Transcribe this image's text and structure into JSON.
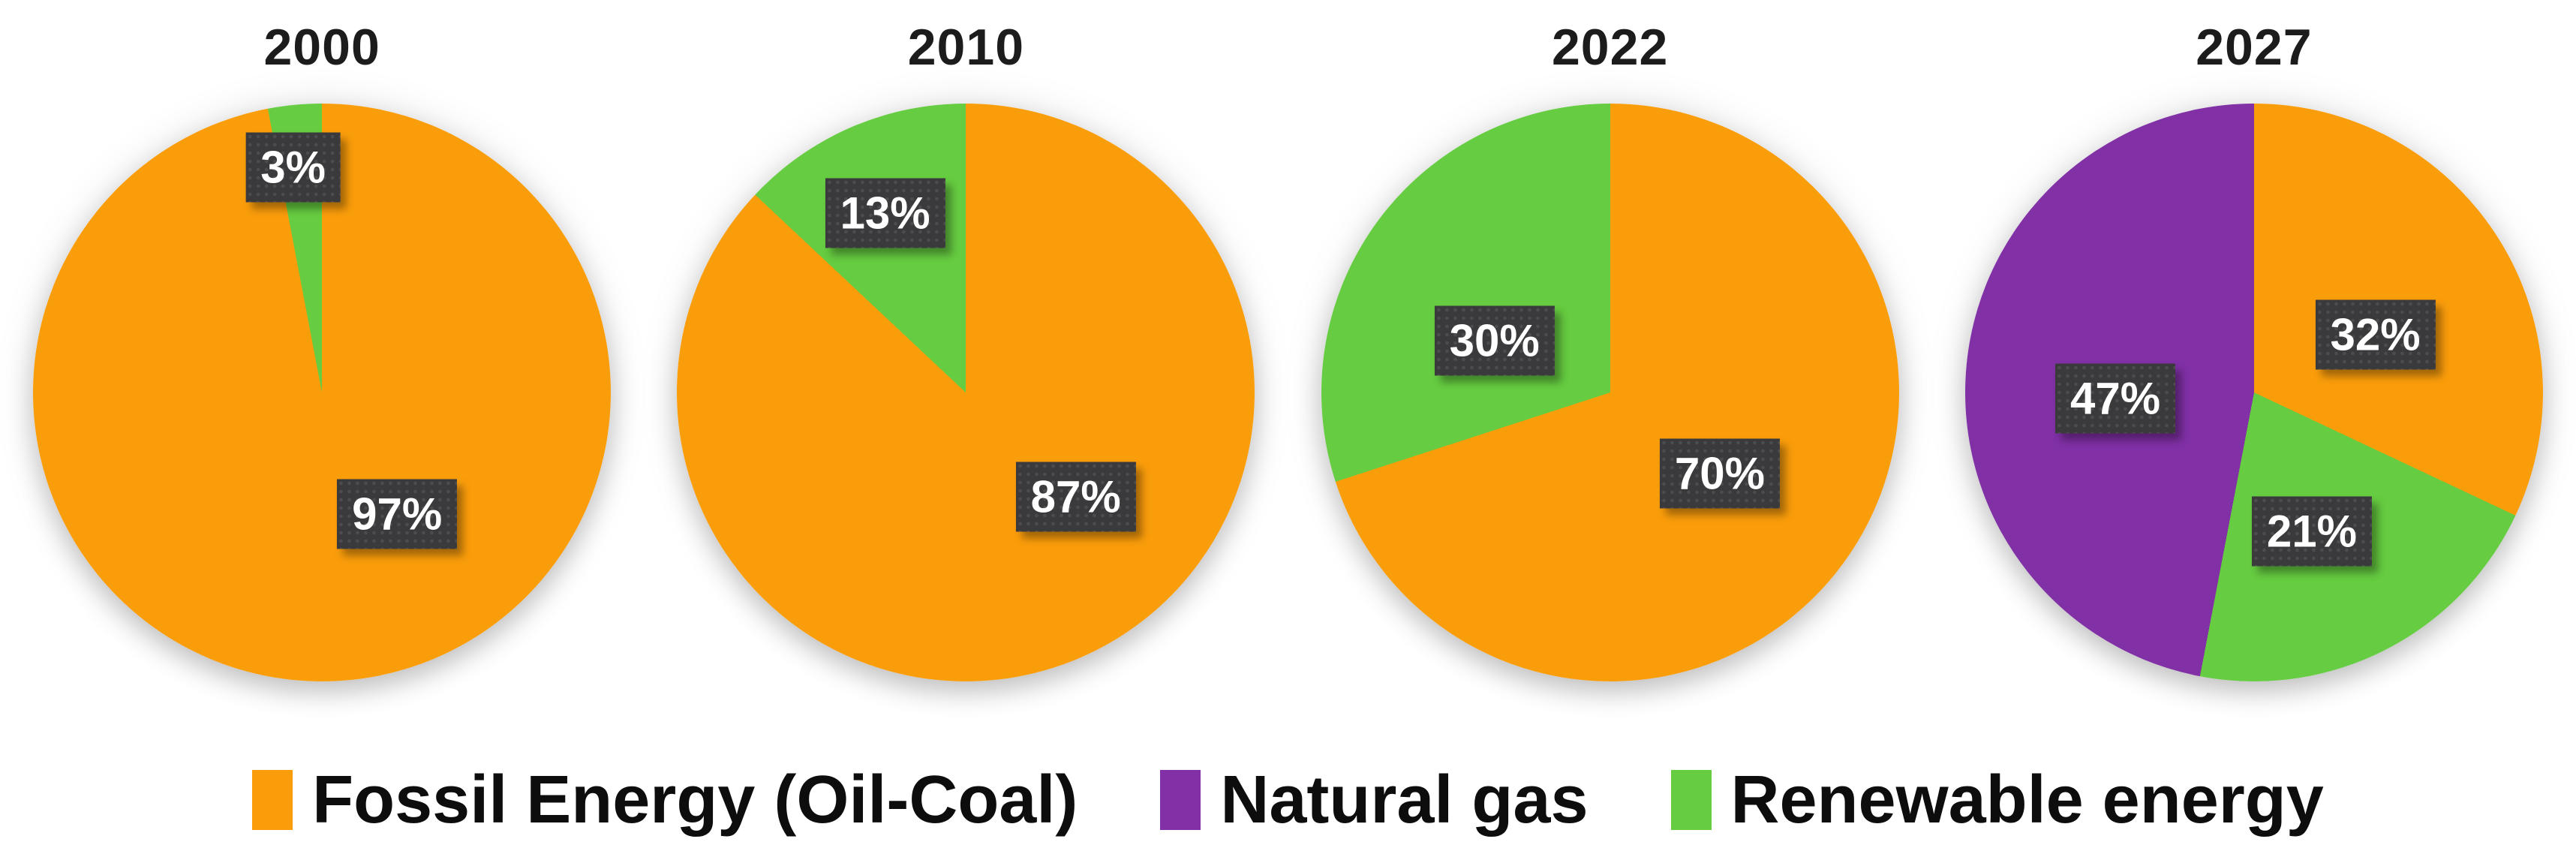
{
  "colors": {
    "fossil": "#FA9D0B",
    "natural_gas": "#8130A6",
    "renewable": "#66CC41",
    "label_box": "#3A3A3C",
    "label_text": "#FFFFFF",
    "title_text": "#1C1C1C",
    "legend_text": "#0D0D0D",
    "background": "#FFFFFF"
  },
  "chart_data": [
    {
      "type": "pie",
      "title": "2000",
      "slices": [
        {
          "label": "Fossil Energy (Oil-Coal)",
          "color_key": "fossil",
          "value": 97,
          "display": "97%"
        },
        {
          "label": "Renewable energy",
          "color_key": "renewable",
          "value": 3,
          "display": "3%"
        }
      ]
    },
    {
      "type": "pie",
      "title": "2010",
      "slices": [
        {
          "label": "Fossil Energy (Oil-Coal)",
          "color_key": "fossil",
          "value": 87,
          "display": "87%"
        },
        {
          "label": "Renewable energy",
          "color_key": "renewable",
          "value": 13,
          "display": "13%"
        }
      ]
    },
    {
      "type": "pie",
      "title": "2022",
      "slices": [
        {
          "label": "Fossil Energy (Oil-Coal)",
          "color_key": "fossil",
          "value": 70,
          "display": "70%"
        },
        {
          "label": "Renewable energy",
          "color_key": "renewable",
          "value": 30,
          "display": "30%"
        }
      ]
    },
    {
      "type": "pie",
      "title": "2027",
      "slices": [
        {
          "label": "Fossil Energy (Oil-Coal)",
          "color_key": "fossil",
          "value": 32,
          "display": "32%"
        },
        {
          "label": "Renewable energy",
          "color_key": "renewable",
          "value": 21,
          "display": "21%"
        },
        {
          "label": "Natural gas",
          "color_key": "natural_gas",
          "value": 47,
          "display": "47%"
        }
      ]
    }
  ],
  "legend": {
    "items": [
      {
        "label": "Fossil Energy (Oil-Coal)",
        "color_key": "fossil"
      },
      {
        "label": "Natural gas",
        "color_key": "natural_gas"
      },
      {
        "label": "Renewable energy",
        "color_key": "renewable"
      }
    ]
  }
}
